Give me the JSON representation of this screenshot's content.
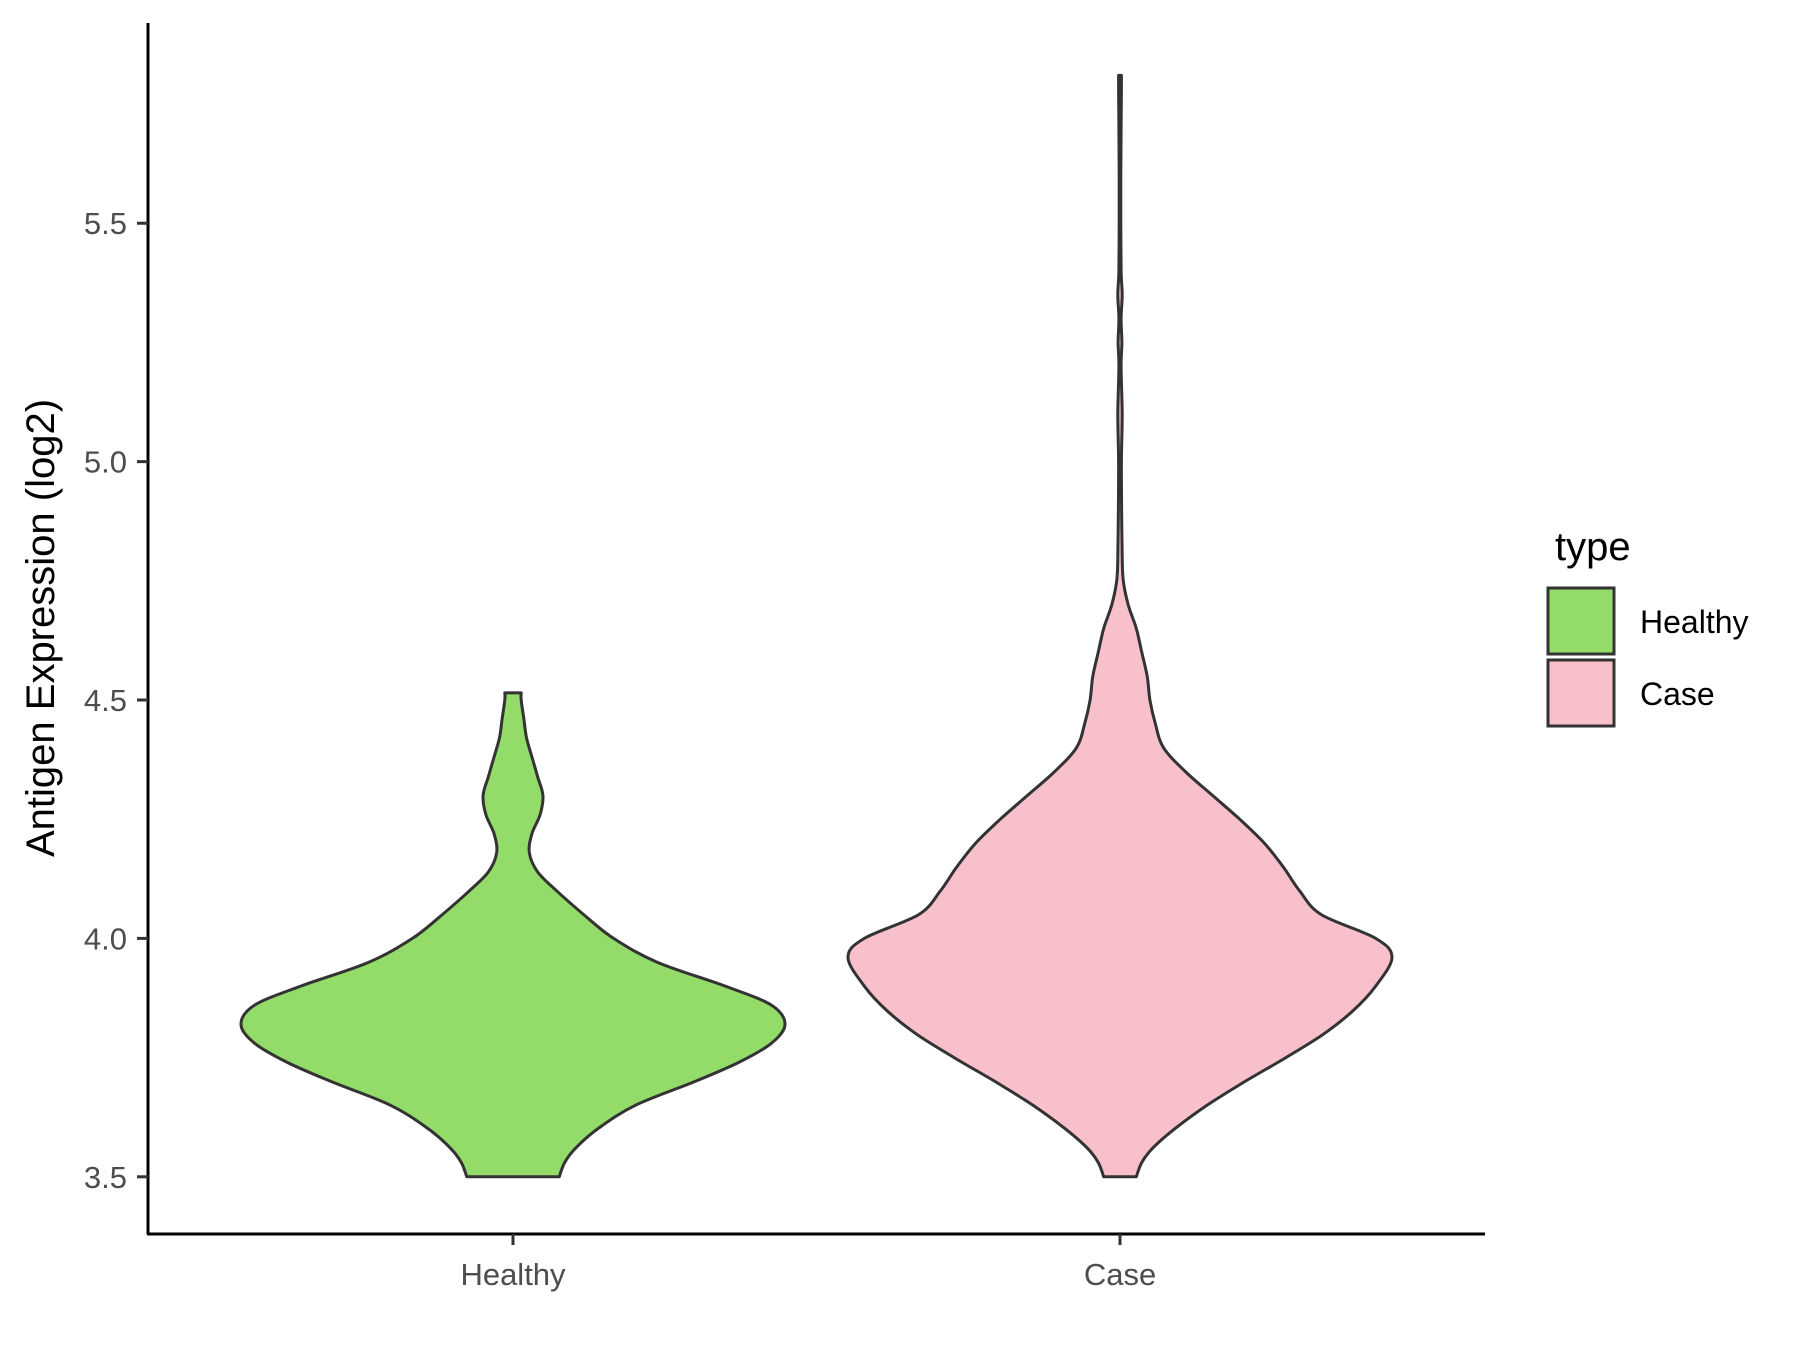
{
  "chart_data": {
    "type": "violin",
    "title": "",
    "xlabel": "",
    "ylabel": "Antigen Expression (log2)",
    "ylim": [
      3.38,
      5.92
    ],
    "yticks": [
      "3.5",
      "4.0",
      "4.5",
      "5.0",
      "5.5"
    ],
    "categories": [
      "Healthy",
      "Case"
    ],
    "grid": false,
    "legend": {
      "title": "type",
      "position": "right",
      "entries": [
        "Healthy",
        "Case"
      ]
    },
    "series": [
      {
        "name": "Healthy",
        "color": "#93DC6A",
        "profile": [
          [
            3.5,
            0.17
          ],
          [
            3.53,
            0.19
          ],
          [
            3.56,
            0.23
          ],
          [
            3.6,
            0.31
          ],
          [
            3.65,
            0.45
          ],
          [
            3.7,
            0.67
          ],
          [
            3.74,
            0.83
          ],
          [
            3.78,
            0.95
          ],
          [
            3.82,
            1.0
          ],
          [
            3.86,
            0.95
          ],
          [
            3.9,
            0.78
          ],
          [
            3.95,
            0.53
          ],
          [
            4.0,
            0.37
          ],
          [
            4.05,
            0.26
          ],
          [
            4.1,
            0.16
          ],
          [
            4.14,
            0.09
          ],
          [
            4.18,
            0.06
          ],
          [
            4.22,
            0.07
          ],
          [
            4.26,
            0.1
          ],
          [
            4.3,
            0.11
          ],
          [
            4.34,
            0.09
          ],
          [
            4.38,
            0.07
          ],
          [
            4.42,
            0.05
          ],
          [
            4.46,
            0.04
          ],
          [
            4.5,
            0.03
          ],
          [
            4.515,
            0.03
          ]
        ]
      },
      {
        "name": "Case",
        "color": "#F8C0CB",
        "profile": [
          [
            3.5,
            0.06
          ],
          [
            3.53,
            0.08
          ],
          [
            3.56,
            0.12
          ],
          [
            3.6,
            0.2
          ],
          [
            3.65,
            0.32
          ],
          [
            3.7,
            0.46
          ],
          [
            3.75,
            0.61
          ],
          [
            3.8,
            0.75
          ],
          [
            3.85,
            0.86
          ],
          [
            3.9,
            0.94
          ],
          [
            3.96,
            1.0
          ],
          [
            4.0,
            0.94
          ],
          [
            4.05,
            0.74
          ],
          [
            4.1,
            0.66
          ],
          [
            4.15,
            0.6
          ],
          [
            4.2,
            0.53
          ],
          [
            4.25,
            0.44
          ],
          [
            4.3,
            0.34
          ],
          [
            4.35,
            0.24
          ],
          [
            4.4,
            0.16
          ],
          [
            4.45,
            0.13
          ],
          [
            4.5,
            0.11
          ],
          [
            4.55,
            0.1
          ],
          [
            4.6,
            0.08
          ],
          [
            4.65,
            0.06
          ],
          [
            4.7,
            0.03
          ],
          [
            4.75,
            0.012
          ],
          [
            4.8,
            0.008
          ],
          [
            4.9,
            0.006
          ],
          [
            5.0,
            0.005
          ],
          [
            5.1,
            0.008
          ],
          [
            5.2,
            0.004
          ],
          [
            5.25,
            0.007
          ],
          [
            5.3,
            0.004
          ],
          [
            5.35,
            0.008
          ],
          [
            5.4,
            0.004
          ],
          [
            5.5,
            0.003
          ],
          [
            5.6,
            0.003
          ],
          [
            5.7,
            0.004
          ],
          [
            5.78,
            0.005
          ],
          [
            5.81,
            0.005
          ]
        ]
      }
    ]
  }
}
